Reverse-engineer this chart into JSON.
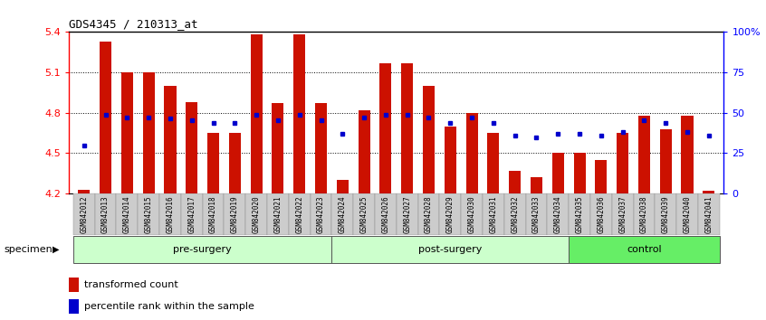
{
  "title": "GDS4345 / 210313_at",
  "samples": [
    "GSM842012",
    "GSM842013",
    "GSM842014",
    "GSM842015",
    "GSM842016",
    "GSM842017",
    "GSM842018",
    "GSM842019",
    "GSM842020",
    "GSM842021",
    "GSM842022",
    "GSM842023",
    "GSM842024",
    "GSM842025",
    "GSM842026",
    "GSM842027",
    "GSM842028",
    "GSM842029",
    "GSM842030",
    "GSM842031",
    "GSM842032",
    "GSM842033",
    "GSM842034",
    "GSM842035",
    "GSM842036",
    "GSM842037",
    "GSM842038",
    "GSM842039",
    "GSM842040",
    "GSM842041"
  ],
  "bar_values": [
    4.23,
    5.33,
    5.1,
    5.1,
    5.0,
    4.88,
    4.65,
    4.65,
    5.38,
    4.87,
    5.38,
    4.87,
    4.3,
    4.82,
    5.17,
    5.17,
    5.0,
    4.7,
    4.8,
    4.65,
    4.37,
    4.32,
    4.5,
    4.5,
    4.45,
    4.65,
    4.78,
    4.68,
    4.78,
    4.22
  ],
  "percentile_values": [
    4.555,
    4.782,
    4.762,
    4.762,
    4.755,
    4.742,
    4.722,
    4.722,
    4.782,
    4.748,
    4.782,
    4.748,
    4.642,
    4.762,
    4.782,
    4.782,
    4.762,
    4.722,
    4.768,
    4.722,
    4.628,
    4.615,
    4.642,
    4.642,
    4.628,
    4.655,
    4.748,
    4.722,
    4.655,
    4.628
  ],
  "group_defs": [
    {
      "start": 0,
      "end": 11,
      "label": "pre-surgery",
      "color": "#ccffcc"
    },
    {
      "start": 12,
      "end": 22,
      "label": "post-surgery",
      "color": "#ccffcc"
    },
    {
      "start": 23,
      "end": 29,
      "label": "control",
      "color": "#66ee66"
    }
  ],
  "ymin": 4.2,
  "ymax": 5.4,
  "bar_color": "#cc1100",
  "dot_color": "#0000cc",
  "bar_width": 0.55,
  "legend_bar": "transformed count",
  "legend_dot": "percentile rank within the sample",
  "right_yticks_pct": [
    0,
    25,
    50,
    75,
    100
  ],
  "right_yticklabels": [
    "0",
    "25",
    "50",
    "75",
    "100%"
  ],
  "background_color": "#ffffff"
}
